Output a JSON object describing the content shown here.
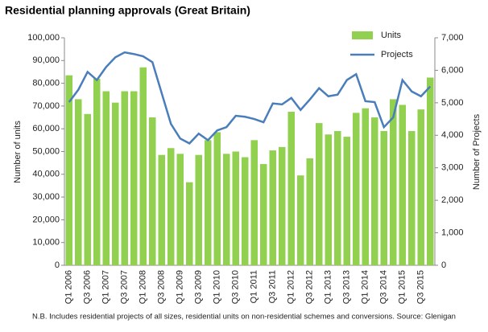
{
  "chart_data": {
    "type": "combo",
    "title": "Residential planning approvals (Great Britain)",
    "note": "N.B. Includes residential projects of all sizes, residential units on non-residential schemes  and conversions.  Source: Glenigan",
    "y_label": "Number of units",
    "y2_label": "Number of Projects",
    "categories": [
      "Q1 2006",
      null,
      "Q3 2006",
      null,
      "Q1 2007",
      null,
      "Q3 2007",
      null,
      "Q1 2008",
      null,
      "Q3 2008",
      null,
      "Q1 2009",
      null,
      "Q3 2009",
      null,
      "Q1 2010",
      null,
      "Q3 2010",
      null,
      "Q1 2011",
      null,
      "Q3 2011",
      null,
      "Q1 2012",
      null,
      "Q3 2012",
      null,
      "Q1 2013",
      null,
      "Q3 2013",
      null,
      "Q1 2014",
      null,
      "Q3 2014",
      null,
      "Q1 2015",
      null,
      "Q3 2015",
      null
    ],
    "series": [
      {
        "name": "Units",
        "type": "bar",
        "color": "#92d050",
        "values": [
          83500,
          73000,
          66500,
          82000,
          76500,
          71500,
          76500,
          76500,
          87000,
          65000,
          48500,
          51500,
          49000,
          36500,
          48500,
          55000,
          58500,
          49000,
          50000,
          47500,
          55000,
          44500,
          50500,
          52000,
          67500,
          39500,
          47000,
          62500,
          57500,
          59000,
          56500,
          67000,
          69000,
          65000,
          59000,
          73000,
          70500,
          59000,
          68500,
          82500
        ]
      },
      {
        "name": "Projects",
        "type": "line",
        "axis": "y2",
        "color": "#4a7ebb",
        "values": [
          5020,
          5400,
          5950,
          5700,
          6100,
          6400,
          6550,
          6500,
          6430,
          6250,
          5300,
          4350,
          3900,
          3750,
          4050,
          3850,
          4150,
          4250,
          4600,
          4570,
          4500,
          4400,
          4980,
          4950,
          5150,
          4780,
          5100,
          5450,
          5200,
          5250,
          5700,
          5880,
          5050,
          5020,
          4250,
          4550,
          5700,
          5350,
          5200,
          5500
        ]
      }
    ],
    "ylim": [
      0,
      100000
    ],
    "yticks": [
      0,
      {
        "value": 10000,
        "label": "10,000"
      },
      {
        "value": 20000,
        "label": "20,000"
      },
      {
        "value": 30000,
        "label": "30,000"
      },
      {
        "value": 40000,
        "label": "40,000"
      },
      {
        "value": 50000,
        "label": "50,000"
      },
      {
        "value": 60000,
        "label": "60,000"
      },
      {
        "value": 70000,
        "label": "70,000"
      },
      {
        "value": 80000,
        "label": "80,000"
      },
      {
        "value": 90000,
        "label": "90,000"
      },
      {
        "value": 100000,
        "label": "100,000"
      }
    ],
    "y2lim": [
      0,
      7000
    ],
    "y2ticks": [
      0,
      {
        "value": 1000,
        "label": "1,000"
      },
      {
        "value": 2000,
        "label": "2,000"
      },
      {
        "value": 3000,
        "label": "3,000"
      },
      {
        "value": 4000,
        "label": "4,000"
      },
      {
        "value": 5000,
        "label": "5,000"
      },
      {
        "value": 6000,
        "label": "6,000"
      },
      {
        "value": 7000,
        "label": "7,000"
      }
    ],
    "legend": "top-right"
  }
}
